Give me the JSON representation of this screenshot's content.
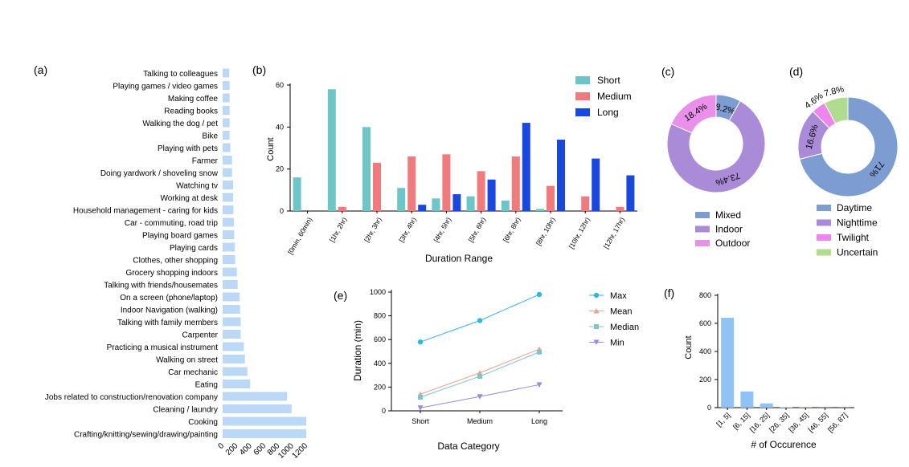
{
  "colors": {
    "bar_a": "#bcd8f7",
    "short": "#6cc6c8",
    "medium": "#f17b7c",
    "long": "#1848e0",
    "mixed": "#7d9cd2",
    "indoor": "#a98bd7",
    "outdoor": "#ea90ea",
    "daytime": "#7d9cd2",
    "nighttime": "#a98bd7",
    "twilight": "#ef84ef",
    "uncertain": "#b1db8e",
    "e_max": "#32b4e6",
    "e_mean": "#f0a090",
    "e_median": "#7ec5c8",
    "e_min": "#9a8bd6",
    "bar_f": "#8fc3f6"
  },
  "chart_data": [
    {
      "panel": "(a)",
      "type": "bar",
      "orientation": "horizontal",
      "categories": [
        "Talking to colleagues",
        "Playing games / video games",
        "Making coffee",
        "Reading books",
        "Walking the dog / pet",
        "Bike",
        "Playing with pets",
        "Farmer",
        "Doing yardwork / shoveling snow",
        "Watching tv",
        "Working at desk",
        "Household management - caring for kids",
        "Car - commuting, road trip",
        "Playing board games",
        "Playing cards",
        "Clothes, other shopping",
        "Grocery shopping indoors",
        "Talking with friends/housemates",
        "On a screen (phone/laptop)",
        "Indoor Navigation (walking)",
        "Talking with family members",
        "Carpenter",
        "Practicing a musical instrument",
        "Walking on street",
        "Car mechanic",
        "Eating",
        "Jobs related to construction/renovation company",
        "Cleaning / laundry",
        "Cooking",
        "Crafting/knitting/sewing/drawing/painting"
      ],
      "values": [
        95,
        100,
        100,
        100,
        100,
        100,
        110,
        135,
        135,
        150,
        150,
        155,
        160,
        165,
        175,
        180,
        205,
        215,
        245,
        250,
        260,
        260,
        305,
        320,
        355,
        395,
        925,
        990,
        1200,
        1200
      ],
      "xticks": [
        "0",
        "200",
        "400",
        "600",
        "800",
        "1000",
        "1200"
      ],
      "xlim": [
        0,
        1200
      ]
    },
    {
      "panel": "(b)",
      "type": "bar",
      "categories": [
        "[0min, 60min)",
        "[1hr, 2hr)",
        "[2hr, 3hr)",
        "[3hr, 4hr)",
        "[4hr, 5hr)",
        "[5hr, 6hr)",
        "[6hr, 8hr)",
        "[8hr, 10hr)",
        "[10hr, 12hr)",
        "[12hr, 17hr)"
      ],
      "series": [
        {
          "name": "Short",
          "values": [
            16,
            58,
            40,
            11,
            6,
            7,
            5,
            1,
            0,
            0
          ]
        },
        {
          "name": "Medium",
          "values": [
            0,
            2,
            23,
            26,
            27,
            19,
            26,
            12,
            7,
            2
          ]
        },
        {
          "name": "Long",
          "values": [
            0,
            0,
            0,
            3,
            8,
            15,
            42,
            34,
            25,
            17
          ]
        }
      ],
      "yticks": [
        "0",
        "20",
        "40",
        "60"
      ],
      "ylim": [
        0,
        60
      ],
      "xlabel": "Duration Range",
      "ylabel": "Count"
    },
    {
      "panel": "(c)",
      "type": "pie",
      "labels": [
        "Mixed",
        "Indoor",
        "Outdoor"
      ],
      "values": [
        8.2,
        73.4,
        18.4
      ],
      "value_labels": [
        "8.2%",
        "73.4%",
        "18.4%"
      ]
    },
    {
      "panel": "(d)",
      "type": "pie",
      "labels": [
        "Daytime",
        "Nighttime",
        "Twilight",
        "Uncertain"
      ],
      "values": [
        71.0,
        16.6,
        4.6,
        7.8
      ],
      "value_labels": [
        "71%",
        "16.6%",
        "4.6%",
        "7.8%"
      ]
    },
    {
      "panel": "(e)",
      "type": "line",
      "categories": [
        "Short",
        "Medium",
        "Long"
      ],
      "series": [
        {
          "name": "Max",
          "values": [
            580,
            760,
            980
          ]
        },
        {
          "name": "Mean",
          "values": [
            140,
            320,
            520
          ]
        },
        {
          "name": "Median",
          "values": [
            115,
            290,
            495
          ]
        },
        {
          "name": "Min",
          "values": [
            25,
            120,
            220
          ]
        }
      ],
      "yticks": [
        "0",
        "200",
        "400",
        "600",
        "800",
        "1000"
      ],
      "ylim": [
        0,
        1000
      ],
      "xlabel": "Data Category",
      "ylabel": "Duration (min)"
    },
    {
      "panel": "(f)",
      "type": "bar",
      "categories": [
        "[1, 5]",
        "[6, 15]",
        "[16, 25]",
        "[26, 35]",
        "[36, 45]",
        "[46, 55]",
        "[56, 87]"
      ],
      "values": [
        640,
        115,
        30,
        3,
        5,
        1,
        1
      ],
      "yticks": [
        "0",
        "200",
        "400",
        "600",
        "800"
      ],
      "ylim": [
        0,
        800
      ],
      "xlabel": "# of Occurence",
      "ylabel": "Count"
    }
  ]
}
